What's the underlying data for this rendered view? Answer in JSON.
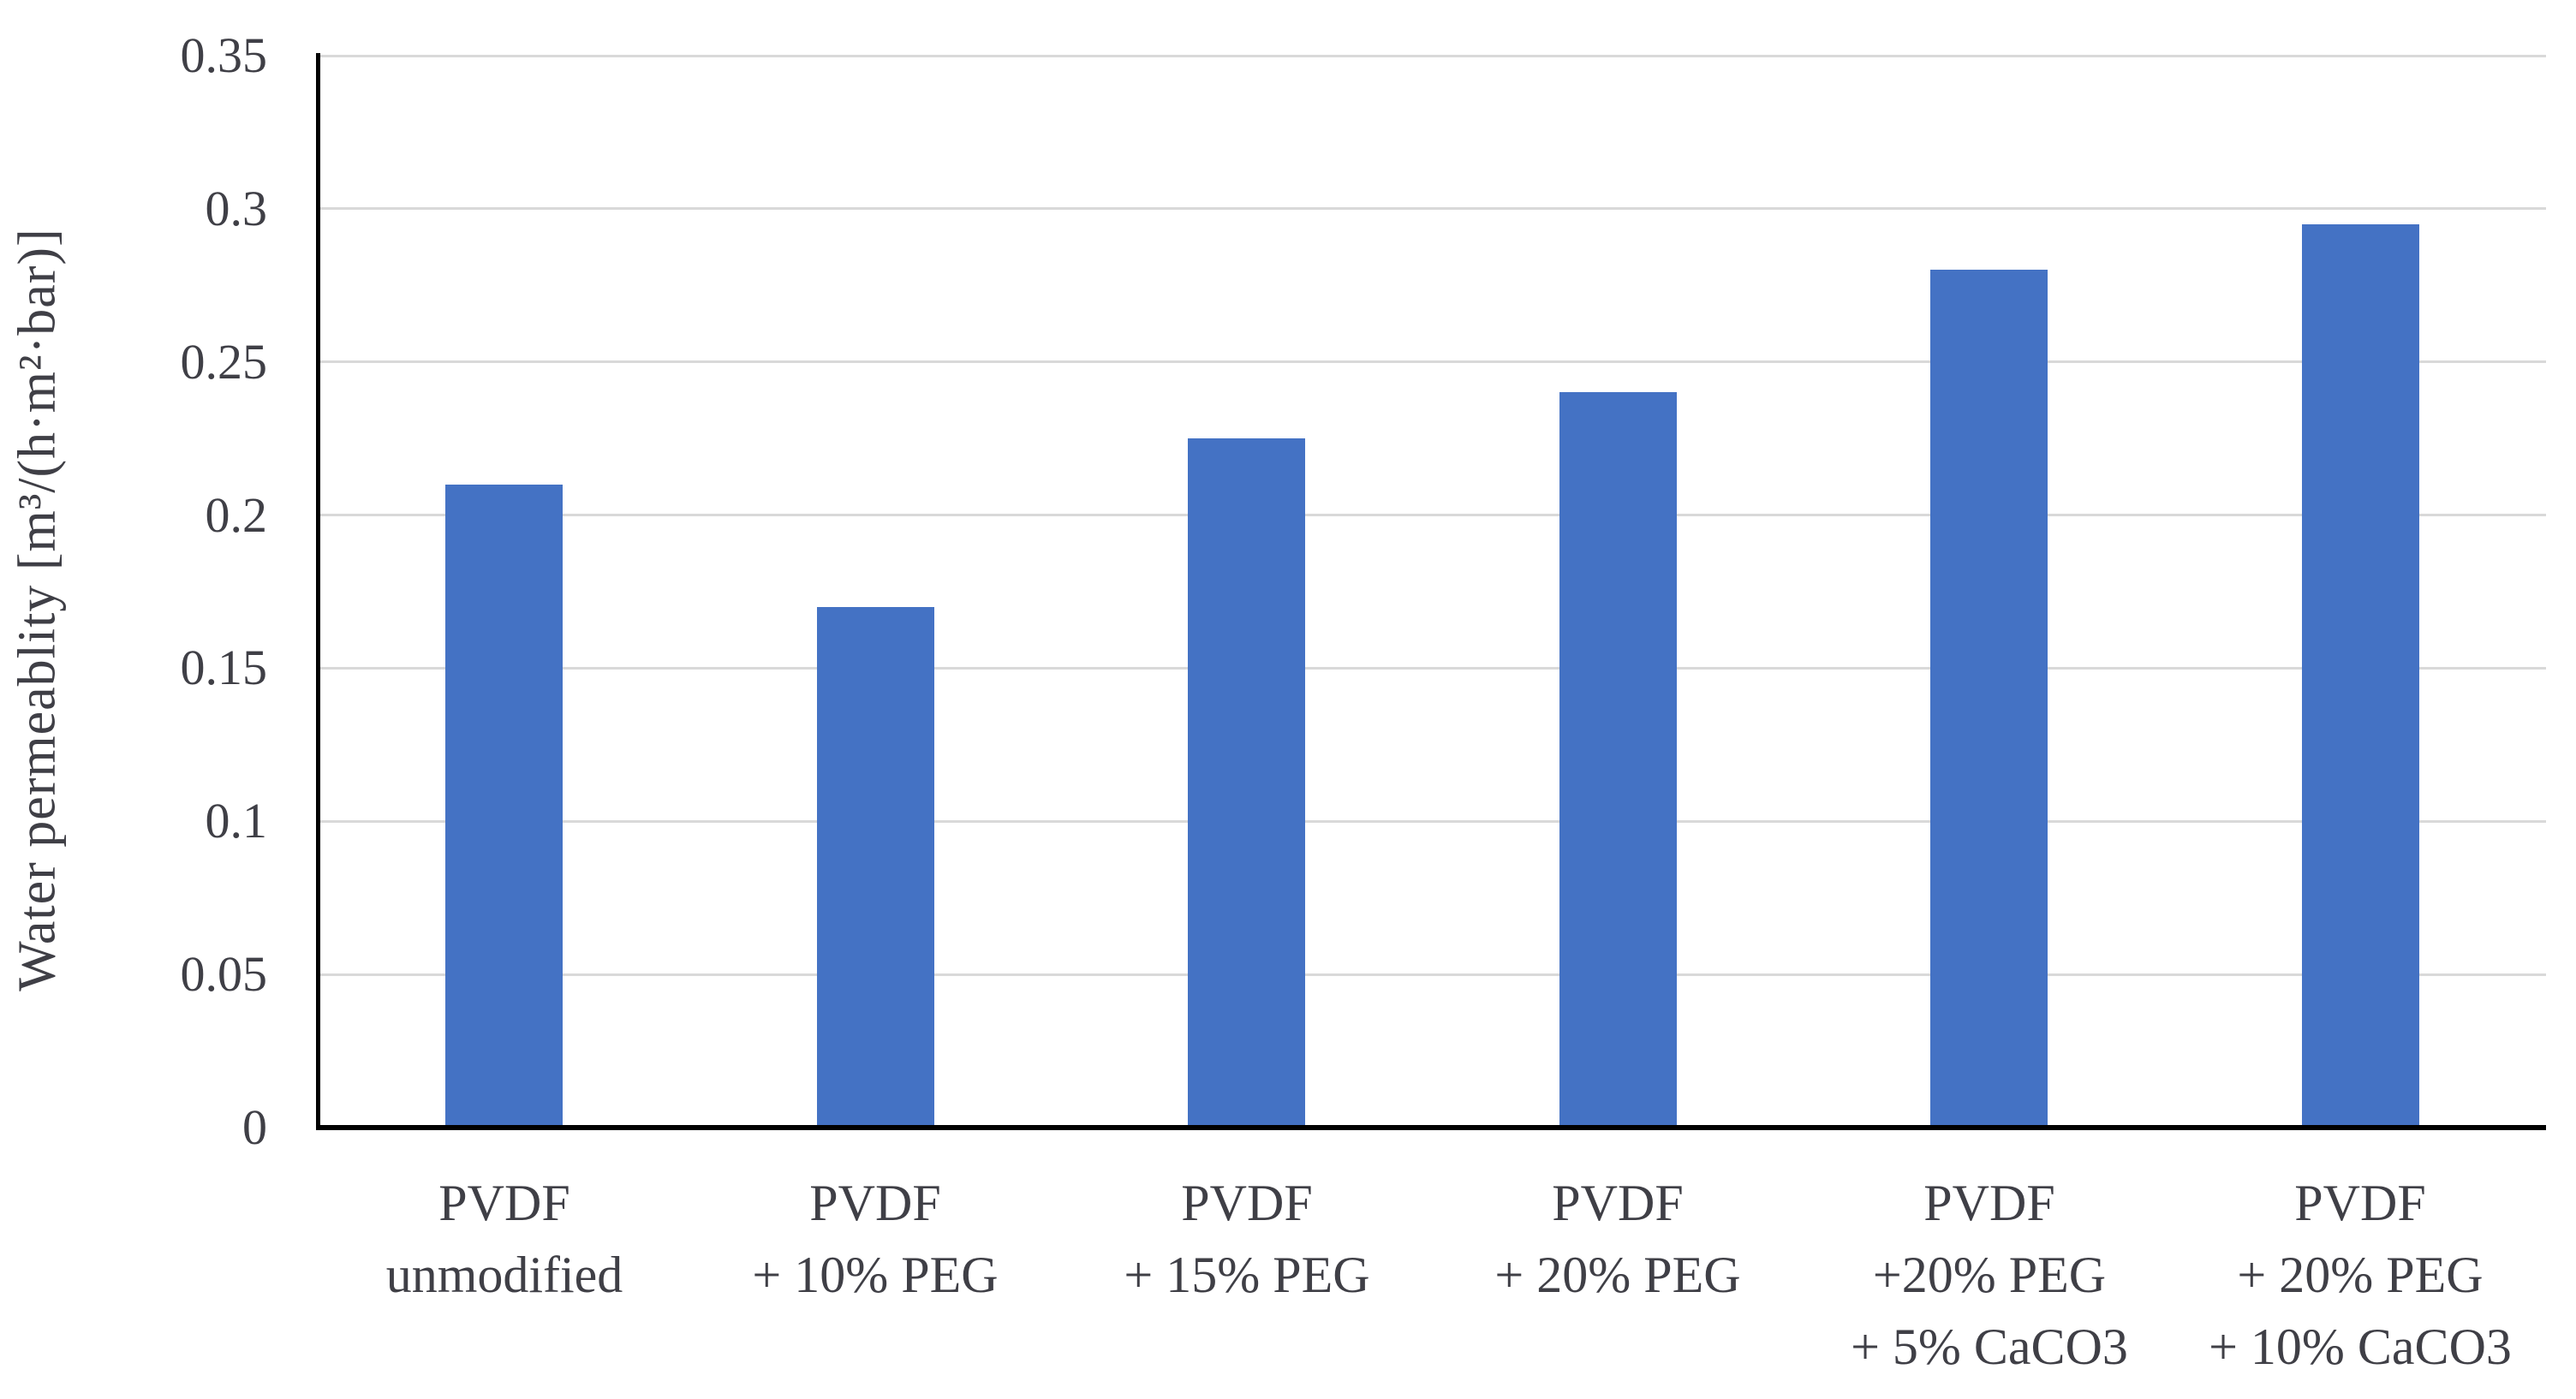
{
  "chart_data": {
    "type": "bar",
    "title": "",
    "ylabel": "Water permeablity [m³/(h·m²·bar)]",
    "xlabel": "",
    "categories": [
      [
        "PVDF",
        "unmodified"
      ],
      [
        "PVDF",
        "+ 10% PEG"
      ],
      [
        "PVDF",
        "+ 15% PEG"
      ],
      [
        "PVDF",
        "+ 20% PEG"
      ],
      [
        "PVDF",
        "+20% PEG",
        "+ 5% CaCO3"
      ],
      [
        "PVDF",
        "+ 20% PEG",
        "+ 10% CaCO3"
      ]
    ],
    "values": [
      0.21,
      0.17,
      0.225,
      0.24,
      0.28,
      0.295
    ],
    "ylim": [
      0,
      0.35
    ],
    "yticks": [
      0,
      0.05,
      0.1,
      0.15,
      0.2,
      0.25,
      0.3,
      0.35
    ],
    "ytick_labels": [
      "0",
      "0.05",
      "0.1",
      "0.15",
      "0.2",
      "0.25",
      "0.3",
      "0.35"
    ],
    "grid": true,
    "legend": false,
    "bar_count": 6,
    "colors": {
      "bar": "#4472C4",
      "gridline": "#D9D9D9",
      "axis": "#000000",
      "text": "#3F3F46"
    }
  }
}
